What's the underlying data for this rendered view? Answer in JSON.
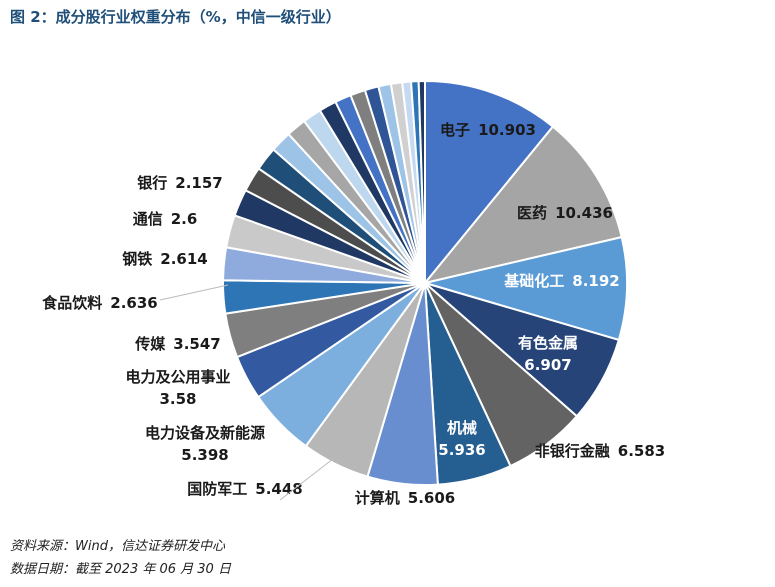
{
  "chart_data": {
    "type": "pie",
    "title": "图 2：成分股行业权重分布（%，中信一级行业）",
    "categories": [
      "电子",
      "医药",
      "基础化工",
      "有色金属",
      "非银行金融",
      "机械",
      "计算机",
      "国防军工",
      "电力设备及新能源",
      "电力及公用事业",
      "传媒",
      "食品饮料",
      "钢铁",
      "通信",
      "银行",
      null,
      null,
      null,
      null,
      null,
      null,
      null,
      null,
      null,
      null,
      null,
      null,
      null,
      null
    ],
    "values": [
      10.903,
      10.436,
      8.192,
      6.907,
      6.583,
      5.936,
      5.606,
      5.448,
      5.398,
      3.58,
      3.547,
      2.636,
      2.614,
      2.6,
      2.157,
      2.0,
      1.9,
      1.7,
      1.6,
      1.5,
      1.4,
      1.3,
      1.2,
      1.1,
      1.0,
      0.9,
      0.7,
      0.6,
      0.5
    ],
    "colors": [
      "#4472c4",
      "#a5a5a5",
      "#5b9bd5",
      "#264478",
      "#636363",
      "#255e91",
      "#698ed0",
      "#b7b7b7",
      "#7cafdd",
      "#335aa1",
      "#7f7f7f",
      "#2e75b6",
      "#8faadc",
      "#c9c9c9",
      "#1f3864",
      "#4d4d4d",
      "#1f4e79",
      "#9dc3e6",
      "#a6a6a6",
      "#bdd7ee",
      "#203864",
      "#4472c4",
      "#7f7f7f",
      "#2f5597",
      "#9dc3e6",
      "#d0d0d0",
      "#c5d9f1",
      "#2e75b6",
      "#1f3864"
    ]
  },
  "source": "资料来源：Wind，信达证券研发中心",
  "date": "数据日期：截至 2023 年 06 月 30 日"
}
